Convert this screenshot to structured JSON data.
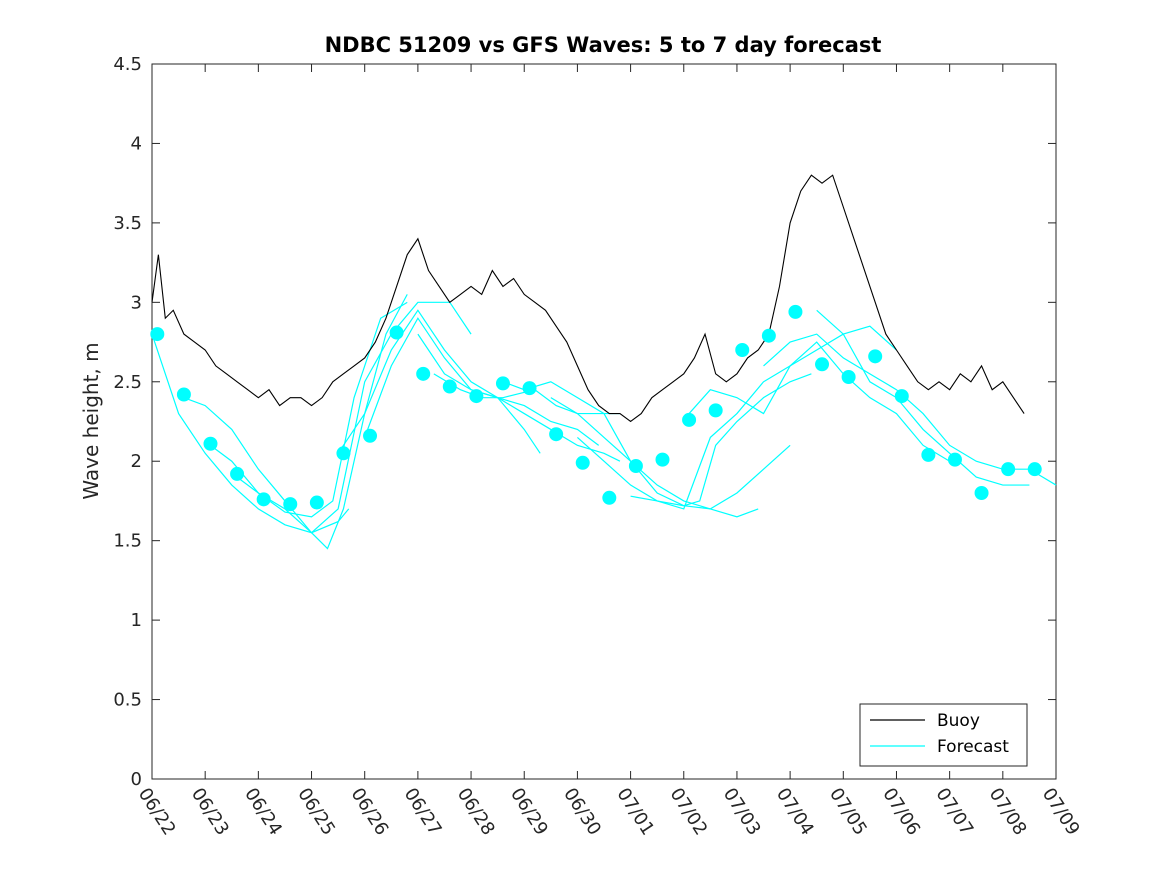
{
  "chart_data": {
    "type": "line",
    "title": "NDBC 51209 vs GFS Waves: 5 to 7 day forecast",
    "xlabel": "",
    "ylabel": "Wave height, m",
    "xlim": [
      "06/22",
      "07/09"
    ],
    "ylim": [
      0,
      4.5
    ],
    "x_ticks": [
      "06/22",
      "06/23",
      "06/24",
      "06/25",
      "06/26",
      "06/27",
      "06/28",
      "06/29",
      "06/30",
      "07/01",
      "07/02",
      "07/03",
      "07/04",
      "07/05",
      "07/06",
      "07/07",
      "07/08",
      "07/09"
    ],
    "y_ticks": [
      "0",
      "0.5",
      "1",
      "1.5",
      "2",
      "2.5",
      "3",
      "3.5",
      "4",
      "4.5"
    ],
    "grid": false,
    "legend_position": "bottom-right",
    "legend": [
      "Buoy",
      "Forecast"
    ],
    "colors": {
      "buoy": "#000000",
      "forecast": "#00ffff"
    },
    "series": [
      {
        "name": "Buoy",
        "x_day_offset": [
          0,
          0.12,
          0.25,
          0.4,
          0.6,
          0.8,
          1.0,
          1.2,
          1.4,
          1.6,
          1.8,
          2.0,
          2.2,
          2.4,
          2.6,
          2.8,
          3.0,
          3.2,
          3.4,
          3.6,
          3.8,
          4.0,
          4.2,
          4.4,
          4.6,
          4.8,
          5.0,
          5.2,
          5.4,
          5.6,
          5.8,
          6.0,
          6.2,
          6.4,
          6.6,
          6.8,
          7.0,
          7.2,
          7.4,
          7.6,
          7.8,
          8.0,
          8.2,
          8.4,
          8.6,
          8.8,
          9.0,
          9.2,
          9.4,
          9.6,
          9.8,
          10.0,
          10.2,
          10.4,
          10.6,
          10.8,
          11.0,
          11.2,
          11.4,
          11.6,
          11.8,
          12.0,
          12.2,
          12.4,
          12.6,
          12.8,
          13.0,
          13.2,
          13.4,
          13.6,
          13.8,
          14.0,
          14.2,
          14.4,
          14.6,
          14.8,
          15.0,
          15.2,
          15.4,
          15.6,
          15.8,
          16.0,
          16.2,
          16.4
        ],
        "values": [
          3.0,
          3.3,
          2.9,
          2.95,
          2.8,
          2.75,
          2.7,
          2.6,
          2.55,
          2.5,
          2.45,
          2.4,
          2.45,
          2.35,
          2.4,
          2.4,
          2.35,
          2.4,
          2.5,
          2.55,
          2.6,
          2.65,
          2.75,
          2.9,
          3.1,
          3.3,
          3.4,
          3.2,
          3.1,
          3.0,
          3.05,
          3.1,
          3.05,
          3.2,
          3.1,
          3.15,
          3.05,
          3.0,
          2.95,
          2.85,
          2.75,
          2.6,
          2.45,
          2.35,
          2.3,
          2.3,
          2.25,
          2.3,
          2.4,
          2.45,
          2.5,
          2.55,
          2.65,
          2.8,
          2.55,
          2.5,
          2.55,
          2.65,
          2.7,
          2.8,
          3.1,
          3.5,
          3.7,
          3.8,
          3.75,
          3.8,
          3.6,
          3.4,
          3.2,
          3.0,
          2.8,
          2.7,
          2.6,
          2.5,
          2.45,
          2.5,
          2.45,
          2.55,
          2.5,
          2.6,
          2.45,
          2.5,
          2.4,
          2.3
        ]
      },
      {
        "name": "Forecast",
        "segments": [
          {
            "x_day_offset": [
              0,
              0.5,
              1.0,
              1.5,
              2.0,
              2.5,
              3.0,
              3.5,
              3.7
            ],
            "values": [
              2.8,
              2.3,
              2.05,
              1.85,
              1.7,
              1.6,
              1.55,
              1.62,
              1.7
            ]
          },
          {
            "x_day_offset": [
              0.6,
              1.0,
              1.5,
              2.0,
              2.5,
              3.0,
              3.3,
              3.6,
              4.0,
              4.4,
              4.8
            ],
            "values": [
              2.4,
              2.35,
              2.2,
              1.95,
              1.75,
              1.55,
              1.45,
              1.7,
              2.3,
              2.8,
              3.05
            ]
          },
          {
            "x_day_offset": [
              1.1,
              1.5,
              2.0,
              2.5,
              3.0,
              3.4,
              3.8,
              4.3,
              4.8
            ],
            "values": [
              2.1,
              2.0,
              1.8,
              1.68,
              1.65,
              1.75,
              2.4,
              2.9,
              3.0
            ]
          },
          {
            "x_day_offset": [
              1.6,
              2.0,
              2.5,
              3.0,
              3.5,
              4.0,
              4.5,
              5.0,
              5.6,
              6.0
            ],
            "values": [
              1.9,
              1.8,
              1.7,
              1.55,
              1.7,
              2.5,
              2.8,
              3.0,
              3.0,
              2.8
            ]
          },
          {
            "x_day_offset": [
              3.5,
              4.0,
              4.5,
              5.0,
              5.5,
              6.0,
              6.5,
              7.0,
              7.5,
              8.0,
              8.4
            ],
            "values": [
              2.05,
              2.3,
              2.7,
              2.95,
              2.7,
              2.5,
              2.4,
              2.35,
              2.25,
              2.2,
              2.1
            ]
          },
          {
            "x_day_offset": [
              4.0,
              4.5,
              5.0,
              5.5,
              6.0,
              6.5,
              7.0,
              7.3
            ],
            "values": [
              2.15,
              2.6,
              2.9,
              2.65,
              2.45,
              2.4,
              2.2,
              2.05
            ]
          },
          {
            "x_day_offset": [
              5.0,
              5.5,
              6.0,
              6.5,
              7.0,
              7.5,
              8.0,
              8.5,
              8.8
            ],
            "values": [
              2.8,
              2.55,
              2.45,
              2.4,
              2.3,
              2.2,
              2.1,
              2.05,
              2.0
            ]
          },
          {
            "x_day_offset": [
              5.3,
              5.8,
              6.2,
              6.6,
              7.2,
              7.6,
              8.0,
              8.4,
              8.8
            ],
            "values": [
              2.55,
              2.45,
              2.4,
              2.4,
              2.45,
              2.35,
              2.3,
              2.3,
              2.3
            ]
          },
          {
            "x_day_offset": [
              6.6,
              7.0,
              7.5,
              8.0,
              8.5,
              9.0,
              9.5,
              10.0,
              10.5,
              11.0,
              11.4
            ],
            "values": [
              2.5,
              2.45,
              2.5,
              2.4,
              2.3,
              2.0,
              1.85,
              1.75,
              1.7,
              1.65,
              1.7
            ]
          },
          {
            "x_day_offset": [
              7.5,
              8.0,
              8.5,
              9.0,
              9.5,
              10.0,
              10.5,
              11.0,
              11.5,
              12.0
            ],
            "values": [
              2.4,
              2.3,
              2.15,
              2.0,
              1.8,
              1.72,
              1.7,
              1.8,
              1.95,
              2.1
            ]
          },
          {
            "x_day_offset": [
              8.0,
              8.5,
              9.0,
              9.5,
              10.0,
              10.3,
              10.6,
              11.0,
              11.5,
              12.0,
              12.4
            ],
            "values": [
              2.15,
              2.0,
              1.85,
              1.75,
              1.72,
              1.75,
              2.1,
              2.25,
              2.4,
              2.5,
              2.55
            ]
          },
          {
            "x_day_offset": [
              9.0,
              9.5,
              10.0,
              10.5,
              11.0,
              11.5,
              12.0,
              12.5,
              13.0,
              13.5,
              14.0
            ],
            "values": [
              1.78,
              1.75,
              1.7,
              2.15,
              2.3,
              2.5,
              2.6,
              2.7,
              2.8,
              2.85,
              2.7
            ]
          },
          {
            "x_day_offset": [
              10.1,
              10.5,
              11.0,
              11.5,
              12.0,
              12.5,
              13.0,
              13.5,
              14.0,
              14.5,
              15.0
            ],
            "values": [
              2.3,
              2.45,
              2.4,
              2.3,
              2.6,
              2.75,
              2.55,
              2.4,
              2.3,
              2.1,
              2.0
            ]
          },
          {
            "x_day_offset": [
              11.5,
              12.0,
              12.5,
              13.0,
              13.5,
              14.0,
              14.5,
              15.0,
              15.5,
              16.0,
              16.5,
              17.0
            ],
            "values": [
              2.6,
              2.75,
              2.8,
              2.65,
              2.55,
              2.45,
              2.3,
              2.1,
              2.0,
              1.95,
              1.95,
              1.85
            ]
          },
          {
            "x_day_offset": [
              12.5,
              13.0,
              13.5,
              14.0,
              14.5,
              15.0,
              15.5,
              16.0,
              16.5
            ],
            "values": [
              2.95,
              2.8,
              2.5,
              2.4,
              2.2,
              2.05,
              1.9,
              1.85,
              1.85
            ]
          }
        ],
        "markers_x_day_offset": [
          0.1,
          0.6,
          1.1,
          1.6,
          2.1,
          2.6,
          3.1,
          3.6,
          4.1,
          4.6,
          5.1,
          5.6,
          6.1,
          6.6,
          7.1,
          7.6,
          8.1,
          8.6,
          9.1,
          9.6,
          10.1,
          10.6,
          11.1,
          11.6,
          12.1,
          12.6,
          13.1,
          13.6,
          14.1,
          14.6,
          15.1,
          15.6,
          16.1,
          16.6
        ],
        "markers_values": [
          2.8,
          2.42,
          2.11,
          1.92,
          1.76,
          1.73,
          1.74,
          2.05,
          2.16,
          2.81,
          2.55,
          2.47,
          2.41,
          2.49,
          2.46,
          2.17,
          1.99,
          1.77,
          1.97,
          2.01,
          2.26,
          2.32,
          2.7,
          2.79,
          2.94,
          2.61,
          2.53,
          2.66,
          2.41,
          2.04,
          2.01,
          1.8,
          1.95,
          1.95
        ]
      }
    ]
  }
}
